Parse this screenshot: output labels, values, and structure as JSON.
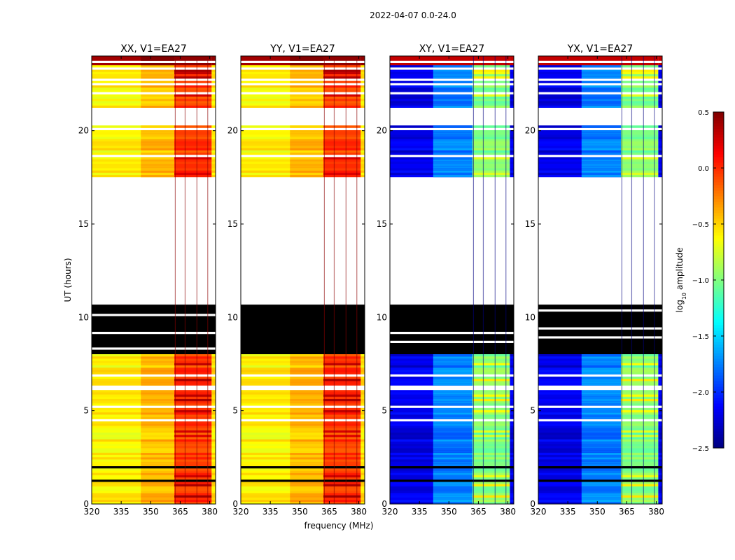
{
  "chart_data": {
    "type": "heatmap",
    "suptitle": "2022-04-07 0.0-24.0",
    "xlabel": "frequency (MHz)",
    "ylabel": "UT (hours)",
    "xlim": [
      320,
      383
    ],
    "ylim": [
      0,
      24
    ],
    "xticks": [
      320,
      335,
      350,
      365,
      380
    ],
    "yticks": [
      0,
      5,
      10,
      15,
      20
    ],
    "rfi_band_mhz": [
      362,
      381
    ],
    "rfi_channels_mhz": [
      362.5,
      367.5,
      373.5,
      379.0
    ],
    "panels": [
      {
        "title": "XX, V1=EA27",
        "polarization": "XX",
        "base_level": -0.55,
        "band_level": -0.05,
        "top_level": 0.45
      },
      {
        "title": "YY, V1=EA27",
        "polarization": "YY",
        "base_level": -0.55,
        "band_level": -0.05,
        "top_level": 0.45
      },
      {
        "title": "XY, V1=EA27",
        "polarization": "XY",
        "base_level": -2.2,
        "band_level": -1.0,
        "top_level": 0.3
      },
      {
        "title": "YX, V1=EA27",
        "polarization": "YX",
        "base_level": -2.2,
        "band_level": -1.0,
        "top_level": 0.3
      }
    ],
    "time_segments": [
      {
        "range": [
          23.5,
          24.0
        ],
        "state": "high-amplitude"
      },
      {
        "range": [
          21.1,
          23.5
        ],
        "state": "data"
      },
      {
        "range": [
          20.3,
          21.1
        ],
        "state": "no-data"
      },
      {
        "range": [
          17.4,
          20.3
        ],
        "state": "data"
      },
      {
        "range": [
          10.7,
          17.4
        ],
        "state": "no-data"
      },
      {
        "range": [
          8.0,
          10.7
        ],
        "state": "flagged-zero"
      },
      {
        "range": [
          0.0,
          8.0
        ],
        "state": "data"
      }
    ],
    "colorbar": {
      "label": "log10 amplitude",
      "colormap": "jet",
      "range": [
        -2.5,
        0.5
      ],
      "ticks": [
        "0.5",
        "0.0",
        "−0.5",
        "−1.0",
        "−1.5",
        "−2.0",
        "−2.5"
      ],
      "tick_values": [
        0.5,
        0.0,
        -0.5,
        -1.0,
        -1.5,
        -2.0,
        -2.5
      ]
    }
  }
}
